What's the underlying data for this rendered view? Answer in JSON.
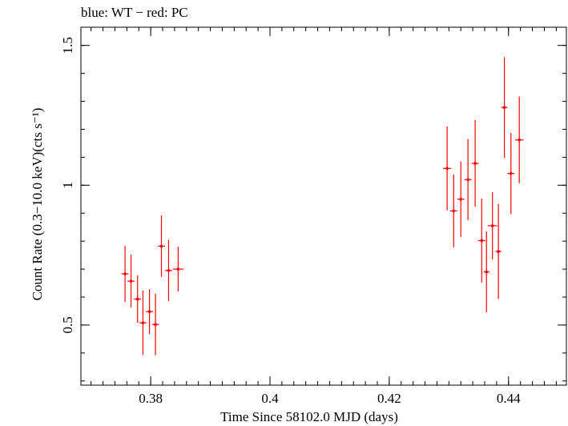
{
  "chart_data": {
    "type": "scatter",
    "title": "blue: WT − red: PC",
    "xlabel": "Time Since 58102.0 MJD (days)",
    "ylabel": "Count Rate (0.3−10.0 keV)(cts s⁻¹)",
    "xlim": [
      0.3683,
      0.4497
    ],
    "ylim": [
      0.285,
      1.565
    ],
    "xticks": [
      {
        "value": 0.38,
        "label": "0.38"
      },
      {
        "value": 0.4,
        "label": "0.4"
      },
      {
        "value": 0.42,
        "label": "0.42"
      },
      {
        "value": 0.44,
        "label": "0.44"
      }
    ],
    "yticks": [
      {
        "value": 0.5,
        "label": "0.5"
      },
      {
        "value": 1.0,
        "label": "1"
      },
      {
        "value": 1.5,
        "label": "1.5"
      }
    ],
    "x_minor_step": 0.002,
    "y_minor_step": 0.1,
    "grid": false,
    "series": [
      {
        "name": "PC",
        "color": "#ff0000",
        "points": [
          {
            "x": 0.3757,
            "xerr": 0.0006,
            "y": 0.683,
            "yerr": 0.1
          },
          {
            "x": 0.3767,
            "xerr": 0.0006,
            "y": 0.657,
            "yerr": 0.095
          },
          {
            "x": 0.3778,
            "xerr": 0.0006,
            "y": 0.593,
            "yerr": 0.085
          },
          {
            "x": 0.3787,
            "xerr": 0.0006,
            "y": 0.508,
            "yerr": 0.115
          },
          {
            "x": 0.3798,
            "xerr": 0.0006,
            "y": 0.548,
            "yerr": 0.08
          },
          {
            "x": 0.3808,
            "xerr": 0.0006,
            "y": 0.502,
            "yerr": 0.11
          },
          {
            "x": 0.3818,
            "xerr": 0.0006,
            "y": 0.782,
            "yerr": 0.11
          },
          {
            "x": 0.383,
            "xerr": 0.0006,
            "y": 0.695,
            "yerr": 0.11
          },
          {
            "x": 0.3846,
            "xerr": 0.0009,
            "y": 0.7,
            "yerr": 0.08
          },
          {
            "x": 0.4297,
            "xerr": 0.0007,
            "y": 1.06,
            "yerr": 0.15
          },
          {
            "x": 0.4308,
            "xerr": 0.0006,
            "y": 0.908,
            "yerr": 0.13
          },
          {
            "x": 0.432,
            "xerr": 0.0006,
            "y": 0.95,
            "yerr": 0.135
          },
          {
            "x": 0.4332,
            "xerr": 0.0006,
            "y": 1.02,
            "yerr": 0.145
          },
          {
            "x": 0.4344,
            "xerr": 0.0006,
            "y": 1.078,
            "yerr": 0.155
          },
          {
            "x": 0.4355,
            "xerr": 0.0006,
            "y": 0.802,
            "yerr": 0.15
          },
          {
            "x": 0.4363,
            "xerr": 0.0005,
            "y": 0.69,
            "yerr": 0.145
          },
          {
            "x": 0.4373,
            "xerr": 0.0008,
            "y": 0.855,
            "yerr": 0.12
          },
          {
            "x": 0.4383,
            "xerr": 0.0005,
            "y": 0.763,
            "yerr": 0.17
          },
          {
            "x": 0.4393,
            "xerr": 0.0005,
            "y": 1.278,
            "yerr": 0.18
          },
          {
            "x": 0.4404,
            "xerr": 0.0006,
            "y": 1.042,
            "yerr": 0.145
          },
          {
            "x": 0.4418,
            "xerr": 0.0007,
            "y": 1.162,
            "yerr": 0.155
          }
        ]
      }
    ]
  }
}
